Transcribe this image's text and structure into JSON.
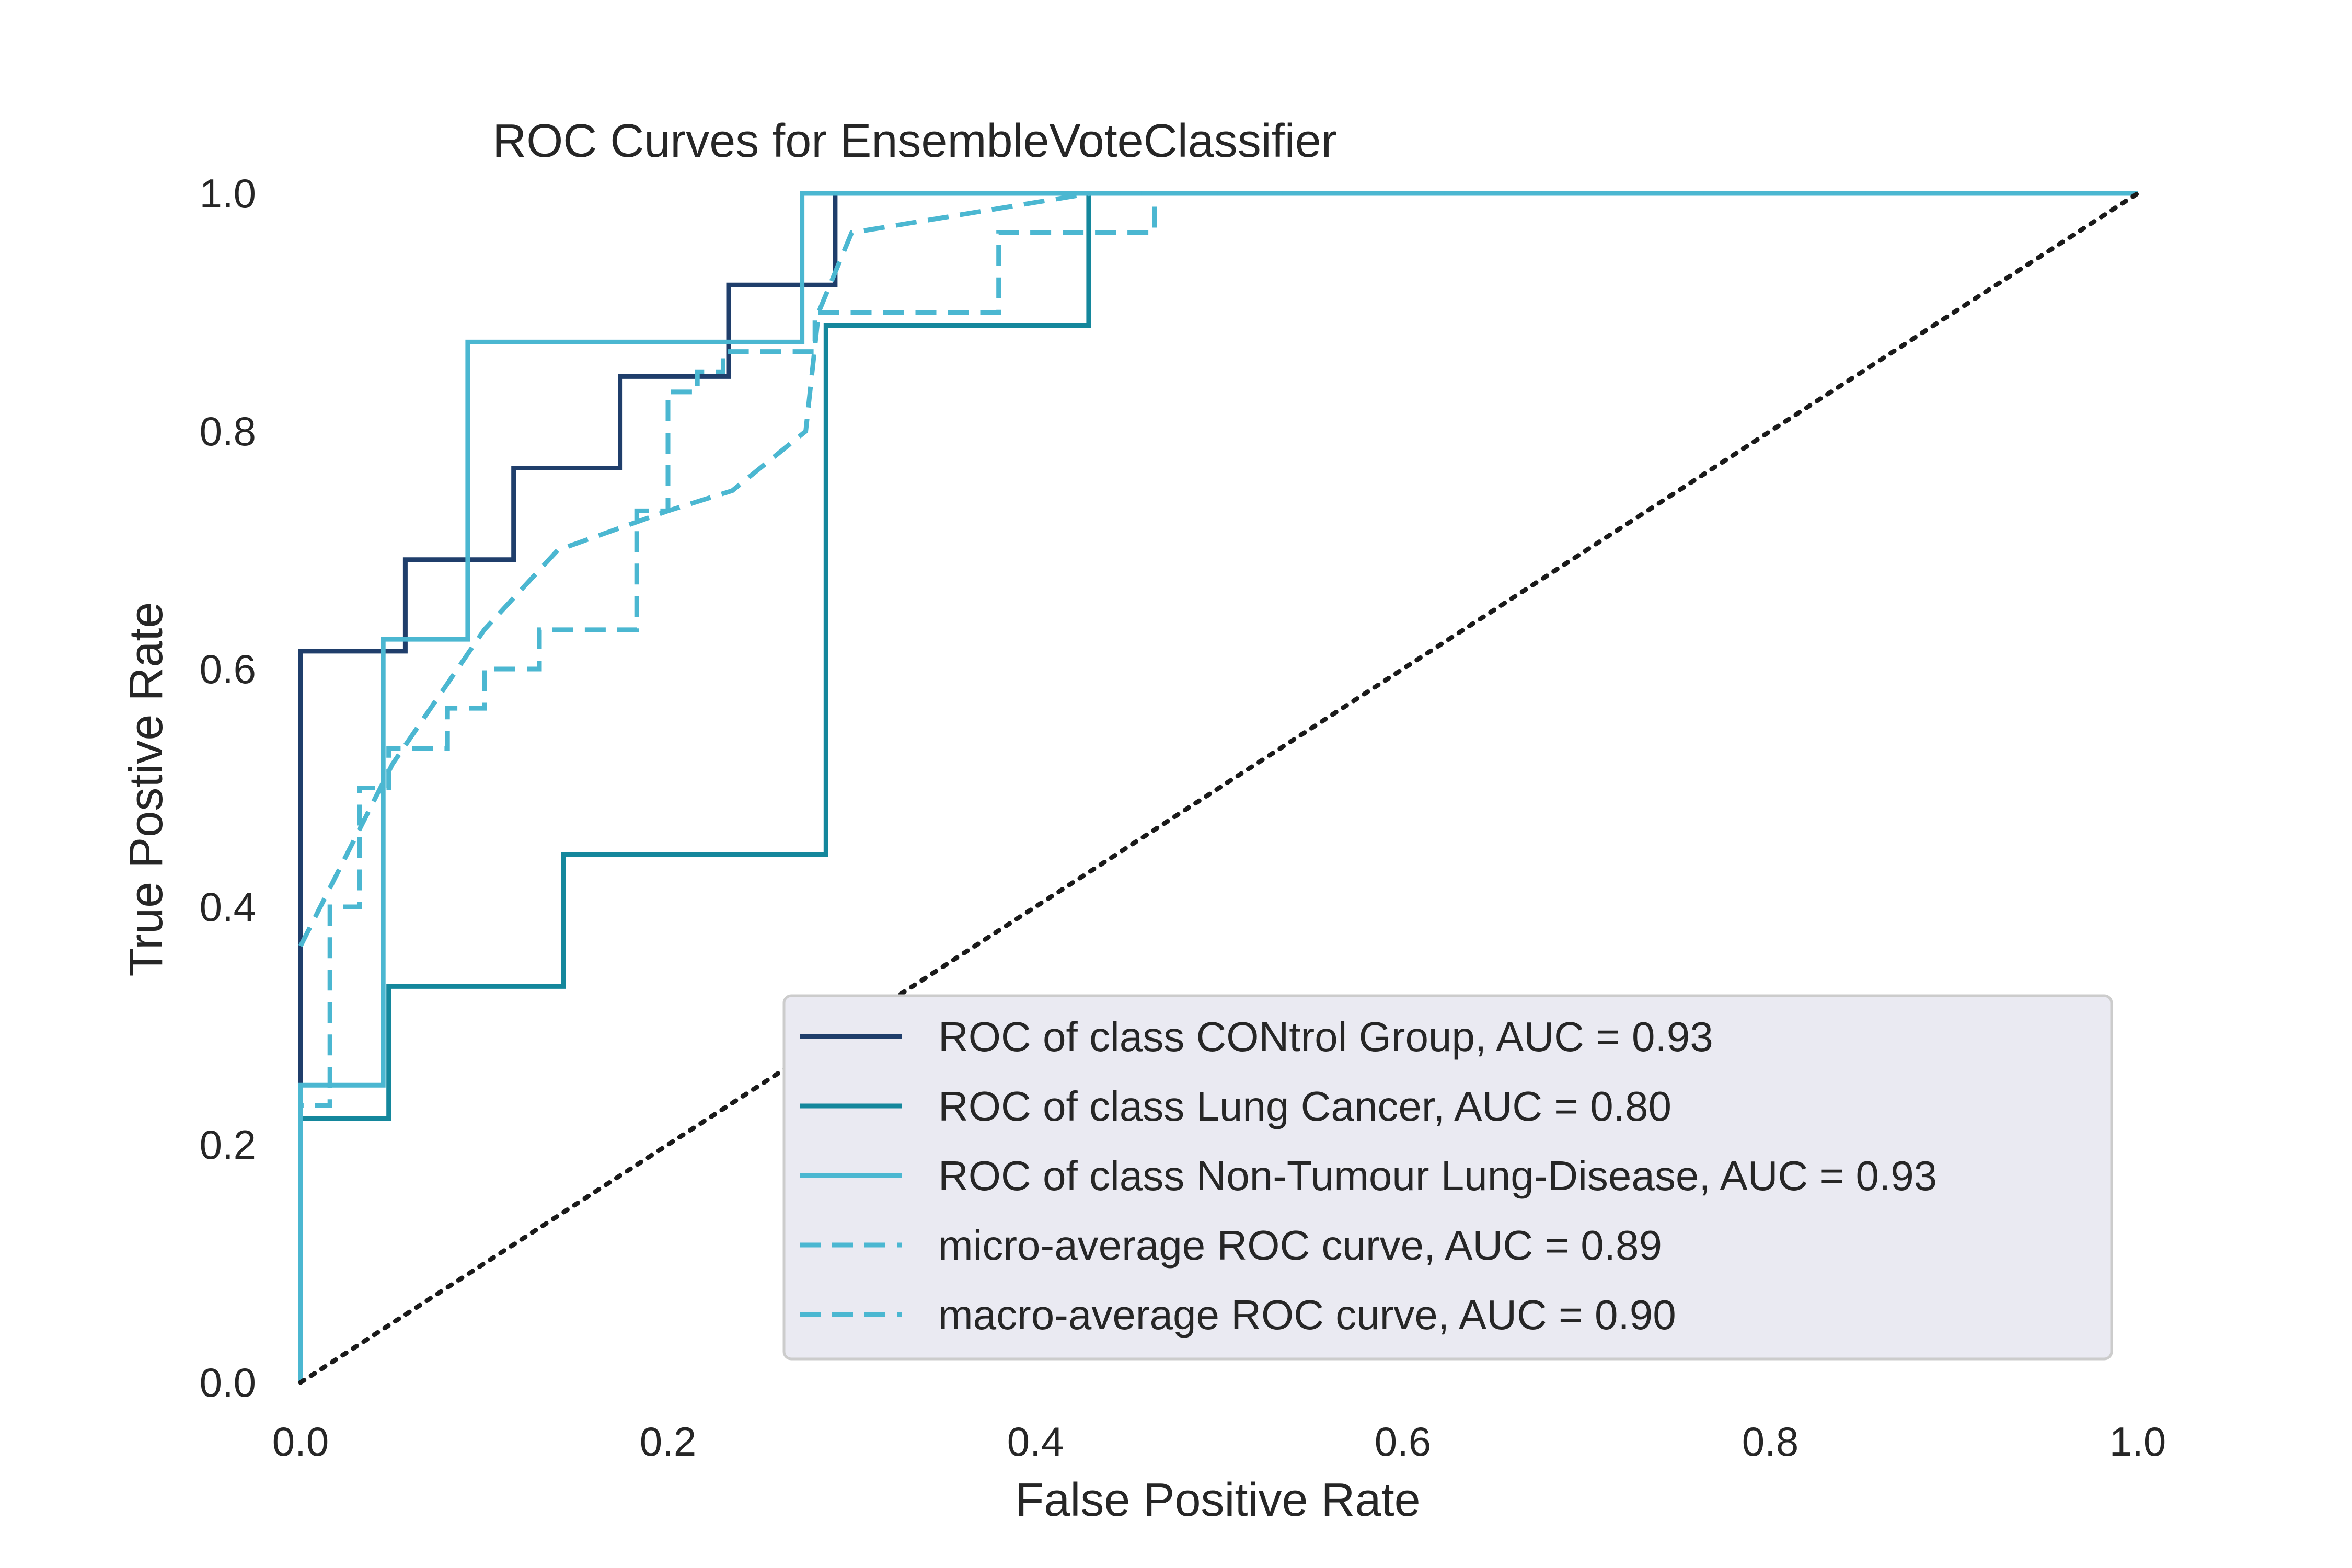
{
  "chart_data": {
    "type": "line",
    "title": "ROC Curves for EnsembleVoteClassifier",
    "xlabel": "False Positive Rate",
    "ylabel": "True Postive Rate",
    "xlim": [
      0.0,
      1.0
    ],
    "ylim": [
      0.0,
      1.0
    ],
    "xticks": [
      "0.0",
      "0.2",
      "0.4",
      "0.6",
      "0.8",
      "1.0"
    ],
    "yticks": [
      "0.0",
      "0.2",
      "0.4",
      "0.6",
      "0.8",
      "1.0"
    ],
    "grid": false,
    "legend_position": "lower-right",
    "series": [
      {
        "name": "ROC of class CONtrol Group, AUC = 0.93",
        "color": "#1f3e6b",
        "style": "solid",
        "x": [
          0.0,
          0.0,
          0.0,
          0.057,
          0.057,
          0.116,
          0.116,
          0.174,
          0.174,
          0.233,
          0.233,
          0.291,
          0.291,
          1.0
        ],
        "y": [
          0.0,
          0.615,
          0.615,
          0.615,
          0.692,
          0.692,
          0.769,
          0.769,
          0.846,
          0.846,
          0.923,
          0.923,
          1.0,
          1.0
        ]
      },
      {
        "name": "ROC of class Lung Cancer, AUC = 0.80",
        "color": "#14879c",
        "style": "solid",
        "x": [
          0.0,
          0.0,
          0.048,
          0.048,
          0.143,
          0.143,
          0.286,
          0.286,
          0.429,
          0.429,
          1.0
        ],
        "y": [
          0.0,
          0.222,
          0.222,
          0.333,
          0.333,
          0.444,
          0.444,
          0.889,
          0.889,
          1.0,
          1.0
        ]
      },
      {
        "name": "ROC of class Non-Tumour Lung-Disease, AUC = 0.93",
        "color": "#4bb7d1",
        "style": "solid",
        "x": [
          0.0,
          0.0,
          0.045,
          0.045,
          0.091,
          0.091,
          0.273,
          0.273,
          1.0
        ],
        "y": [
          0.0,
          0.25,
          0.25,
          0.625,
          0.625,
          0.875,
          0.875,
          1.0,
          1.0
        ]
      },
      {
        "name": "micro-average ROC curve, AUC = 0.89",
        "color": "#4bb7d1",
        "style": "dashed",
        "x": [
          0.0,
          0.05,
          0.1,
          0.14,
          0.2,
          0.235,
          0.275,
          0.282,
          0.3,
          0.43,
          1.0
        ],
        "y": [
          0.367,
          0.52,
          0.633,
          0.7,
          0.733,
          0.75,
          0.8,
          0.9,
          0.967,
          1.0,
          1.0
        ]
      },
      {
        "name": "macro-average ROC curve, AUC = 0.90",
        "color": "#4bb7d1",
        "style": "dashed",
        "x": [
          0.0,
          0.0,
          0.016,
          0.016,
          0.032,
          0.032,
          0.048,
          0.048,
          0.06,
          0.08,
          0.08,
          0.1,
          0.1,
          0.13,
          0.13,
          0.183,
          0.183,
          0.2,
          0.2,
          0.216,
          0.216,
          0.23,
          0.23,
          0.28,
          0.28,
          0.38,
          0.38,
          0.465,
          0.465,
          1.0
        ],
        "y": [
          0.0,
          0.233,
          0.233,
          0.4,
          0.4,
          0.5,
          0.5,
          0.533,
          0.533,
          0.533,
          0.567,
          0.567,
          0.6,
          0.6,
          0.633,
          0.633,
          0.733,
          0.733,
          0.833,
          0.833,
          0.85,
          0.85,
          0.867,
          0.867,
          0.9,
          0.9,
          0.967,
          0.967,
          1.0,
          1.0
        ]
      }
    ],
    "reference_line": {
      "color": "#1a1a1a",
      "style": "dotted",
      "x": [
        0.0,
        1.0
      ],
      "y": [
        0.0,
        1.0
      ]
    }
  }
}
